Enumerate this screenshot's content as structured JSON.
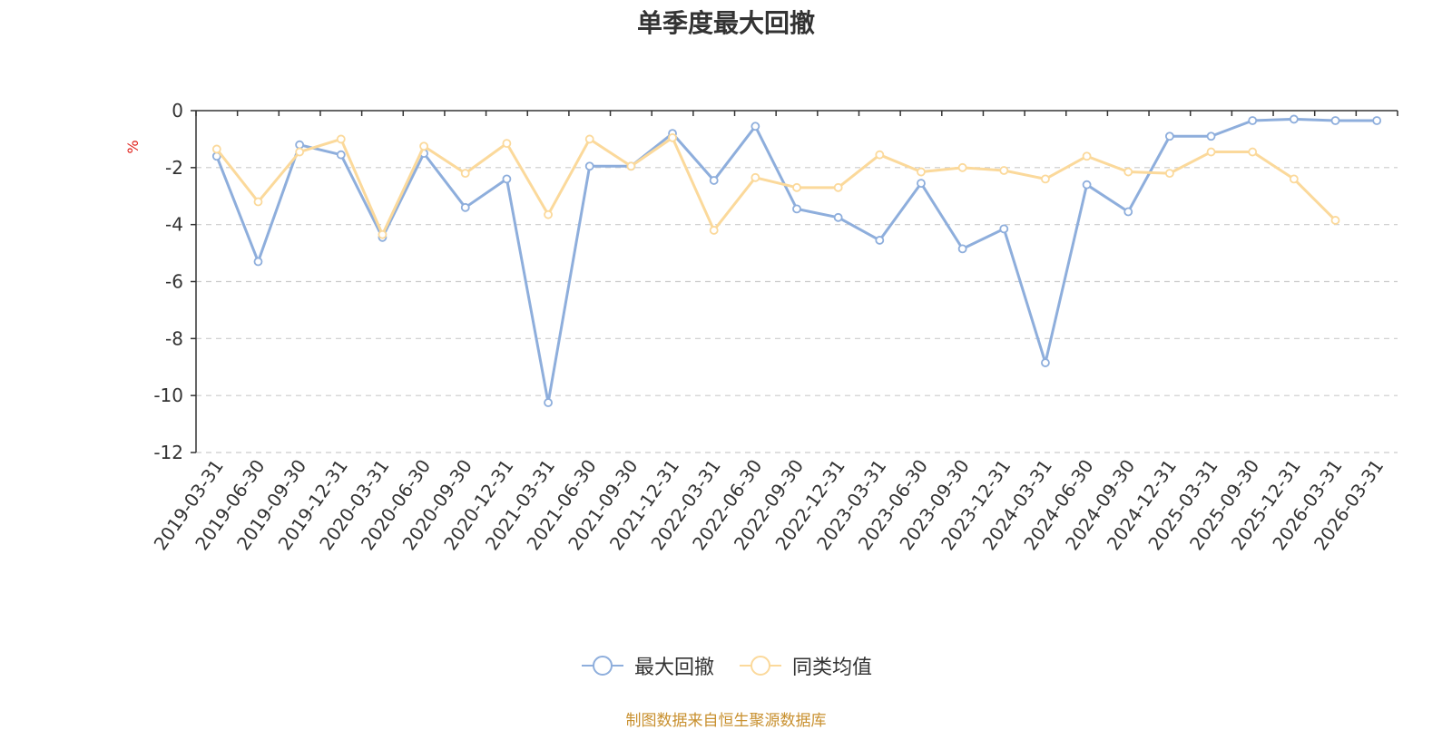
{
  "chart_data": {
    "type": "line",
    "title": "单季度最大回撤",
    "ylabel": "%",
    "xlabel": "",
    "ylim": [
      -12,
      0
    ],
    "yticks": [
      0,
      -2,
      -4,
      -6,
      -8,
      -10,
      -12
    ],
    "grid": true,
    "legend_position": "bottom-center",
    "x": [
      "2019-03-31",
      "2019-06-30",
      "2019-09-30",
      "2019-12-31",
      "2020-03-31",
      "2020-06-30",
      "2020-09-30",
      "2020-12-31",
      "2021-03-31",
      "2021-06-30",
      "2021-09-30",
      "2021-12-31",
      "2022-03-31",
      "2022-06-30",
      "2022-09-30",
      "2022-12-31",
      "2023-03-31",
      "2023-06-30",
      "2023-09-30",
      "2023-12-31",
      "2024-03-31",
      "2024-06-30",
      "2024-09-30",
      "2024-12-31",
      "2025-03-31",
      "2025-09-30",
      "2025-12-31",
      "2026-03-31",
      "2026-03-31"
    ],
    "series": [
      {
        "name": "最大回撤",
        "color": "#8eaedc",
        "values": [
          -1.6,
          -5.3,
          -1.2,
          -1.55,
          -4.45,
          -1.5,
          -3.4,
          -2.4,
          -10.25,
          -1.95,
          -1.95,
          -0.8,
          -2.45,
          -0.55,
          -3.45,
          -3.75,
          -4.55,
          -2.55,
          -4.85,
          -4.15,
          -8.85,
          -2.6,
          -3.55,
          -0.9,
          -0.9,
          -0.35,
          -0.3,
          -0.35,
          -0.35
        ]
      },
      {
        "name": "同类均值",
        "color": "#fbd99b",
        "values": [
          -1.35,
          -3.2,
          -1.45,
          -1.0,
          -4.35,
          -1.25,
          -2.2,
          -1.15,
          -3.65,
          -1.0,
          -1.95,
          -0.95,
          -4.2,
          -2.35,
          -2.7,
          -2.7,
          -1.55,
          -2.15,
          -2.0,
          -2.1,
          -2.4,
          -1.6,
          -2.15,
          -2.2,
          -1.45,
          -1.45,
          -2.4,
          -3.85,
          null
        ]
      }
    ]
  },
  "source_note": "制图数据来自恒生聚源数据库"
}
